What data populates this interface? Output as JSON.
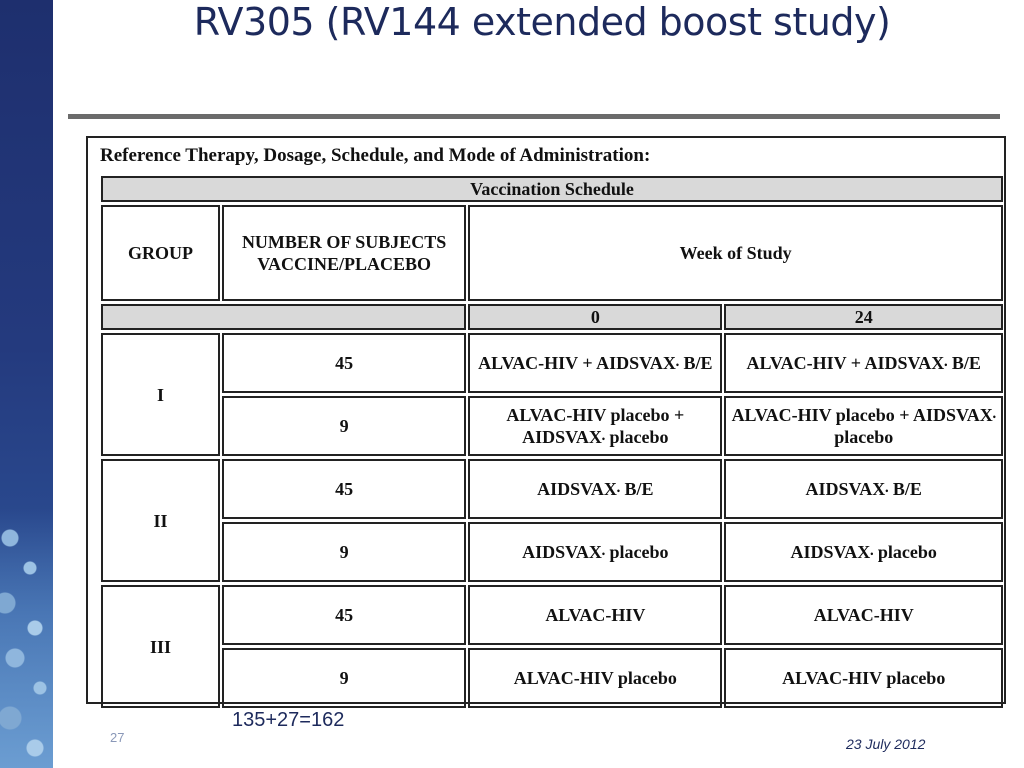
{
  "slide": {
    "title": "RV305 (RV144 extended boost study)",
    "total": "135+27=162",
    "page_number": "27",
    "date": "23 July 2012"
  },
  "table": {
    "heading": "Reference Therapy, Dosage, Schedule, and Mode of Administration:",
    "banner": "Vaccination Schedule",
    "col_group": "GROUP",
    "col_subjects": "NUMBER OF SUBJECTS VACCINE/PLACEBO",
    "col_week": "Week of Study",
    "week_0": "0",
    "week_24": "24",
    "groups": [
      {
        "label": "I",
        "rows": [
          {
            "n": "45",
            "w0": "ALVAC-HIV + AIDSVAX",
            "w0_suffix": " B/E",
            "w24": "ALVAC-HIV + AIDSVAX",
            "w24_suffix": " B/E"
          },
          {
            "n": "9",
            "w0": "ALVAC-HIV placebo + AIDSVAX",
            "w0_suffix": " placebo",
            "w24": "ALVAC-HIV placebo + AIDSVAX",
            "w24_suffix": " placebo"
          }
        ]
      },
      {
        "label": "II",
        "rows": [
          {
            "n": "45",
            "w0": "AIDSVAX",
            "w0_suffix": " B/E",
            "w24": "AIDSVAX",
            "w24_suffix": " B/E"
          },
          {
            "n": "9",
            "w0": "AIDSVAX",
            "w0_suffix": " placebo",
            "w24": "AIDSVAX",
            "w24_suffix": " placebo"
          }
        ]
      },
      {
        "label": "III",
        "rows": [
          {
            "n": "45",
            "w0": "ALVAC-HIV",
            "w0_suffix": "",
            "w24": "ALVAC-HIV",
            "w24_suffix": ""
          },
          {
            "n": "9",
            "w0": "ALVAC-HIV placebo",
            "w0_suffix": "",
            "w24": "ALVAC-HIV placebo",
            "w24_suffix": ""
          }
        ]
      }
    ]
  },
  "colors": {
    "sidebar": "#243a7e",
    "title_text": "#1d2a5c",
    "rule": "#6b6b6b",
    "table_fill": "#d9d9d9"
  }
}
